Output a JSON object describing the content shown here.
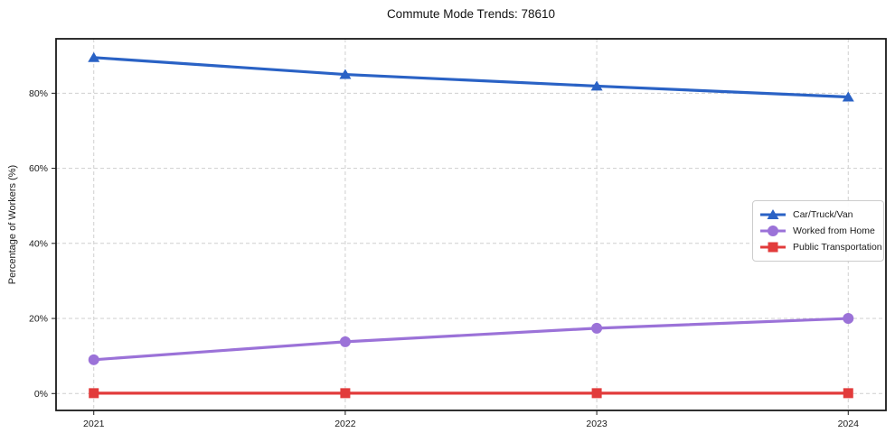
{
  "chart": {
    "title": "Commute Mode Trends: 78610",
    "ylabel": "Percentage of Workers (%)"
  },
  "chart_data": {
    "type": "line",
    "x": [
      2021,
      2022,
      2023,
      2024
    ],
    "categories": [
      "2021",
      "2022",
      "2023",
      "2024"
    ],
    "series": [
      {
        "name": "Car/Truck/Van",
        "values": [
          89.5,
          85.0,
          81.9,
          79.0
        ],
        "color": "#2a62c5",
        "marker": "triangle"
      },
      {
        "name": "Worked from Home",
        "values": [
          9.0,
          13.8,
          17.4,
          20.0
        ],
        "color": "#9b72d8",
        "marker": "circle"
      },
      {
        "name": "Public Transportation",
        "values": [
          0.1,
          0.1,
          0.1,
          0.1
        ],
        "color": "#e23b3b",
        "marker": "square"
      }
    ],
    "yticks": {
      "values": [
        0,
        20,
        40,
        60,
        80
      ],
      "labels": [
        "0%",
        "20%",
        "40%",
        "60%",
        "80%"
      ]
    },
    "xlim": [
      2020.85,
      2024.15
    ],
    "ylim": [
      -4.5,
      94.5
    ],
    "grid": true,
    "legend_position": "right-middle",
    "title": "Commute Mode Trends: 78610",
    "xlabel": "",
    "ylabel": "Percentage of Workers (%)"
  }
}
